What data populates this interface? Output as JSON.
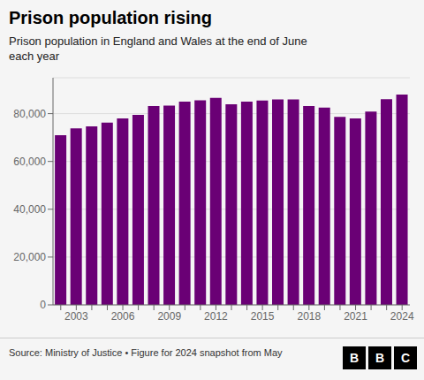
{
  "chart_data": {
    "type": "bar",
    "title": "Prison population rising",
    "subtitle": "Prison population in England and Wales at the end of June\neach year",
    "source": "Source: Ministry of Justice • Figure for 2024 snapshot from May",
    "annotations": [
      "BBC"
    ],
    "categories": [
      null,
      "2003",
      null,
      null,
      "2006",
      null,
      null,
      "2009",
      null,
      null,
      "2012",
      null,
      null,
      "2015",
      null,
      null,
      "2018",
      null,
      null,
      "2021",
      null,
      null,
      "2024"
    ],
    "values": [
      71000,
      73800,
      74700,
      76200,
      78000,
      79500,
      83200,
      83400,
      85000,
      85600,
      86600,
      83900,
      85000,
      85500,
      85900,
      85900,
      83200,
      82500,
      78600,
      78000,
      80900,
      86000,
      88000
    ],
    "color": "#6a0075",
    "ylim": [
      0,
      95000
    ],
    "yticks": [
      0,
      {
        "value": 20000,
        "label": "20,000"
      },
      {
        "value": 40000,
        "label": "40,000"
      },
      {
        "value": 60000,
        "label": "60,000"
      },
      {
        "value": 80000,
        "label": "80,000"
      }
    ],
    "grid": true
  }
}
